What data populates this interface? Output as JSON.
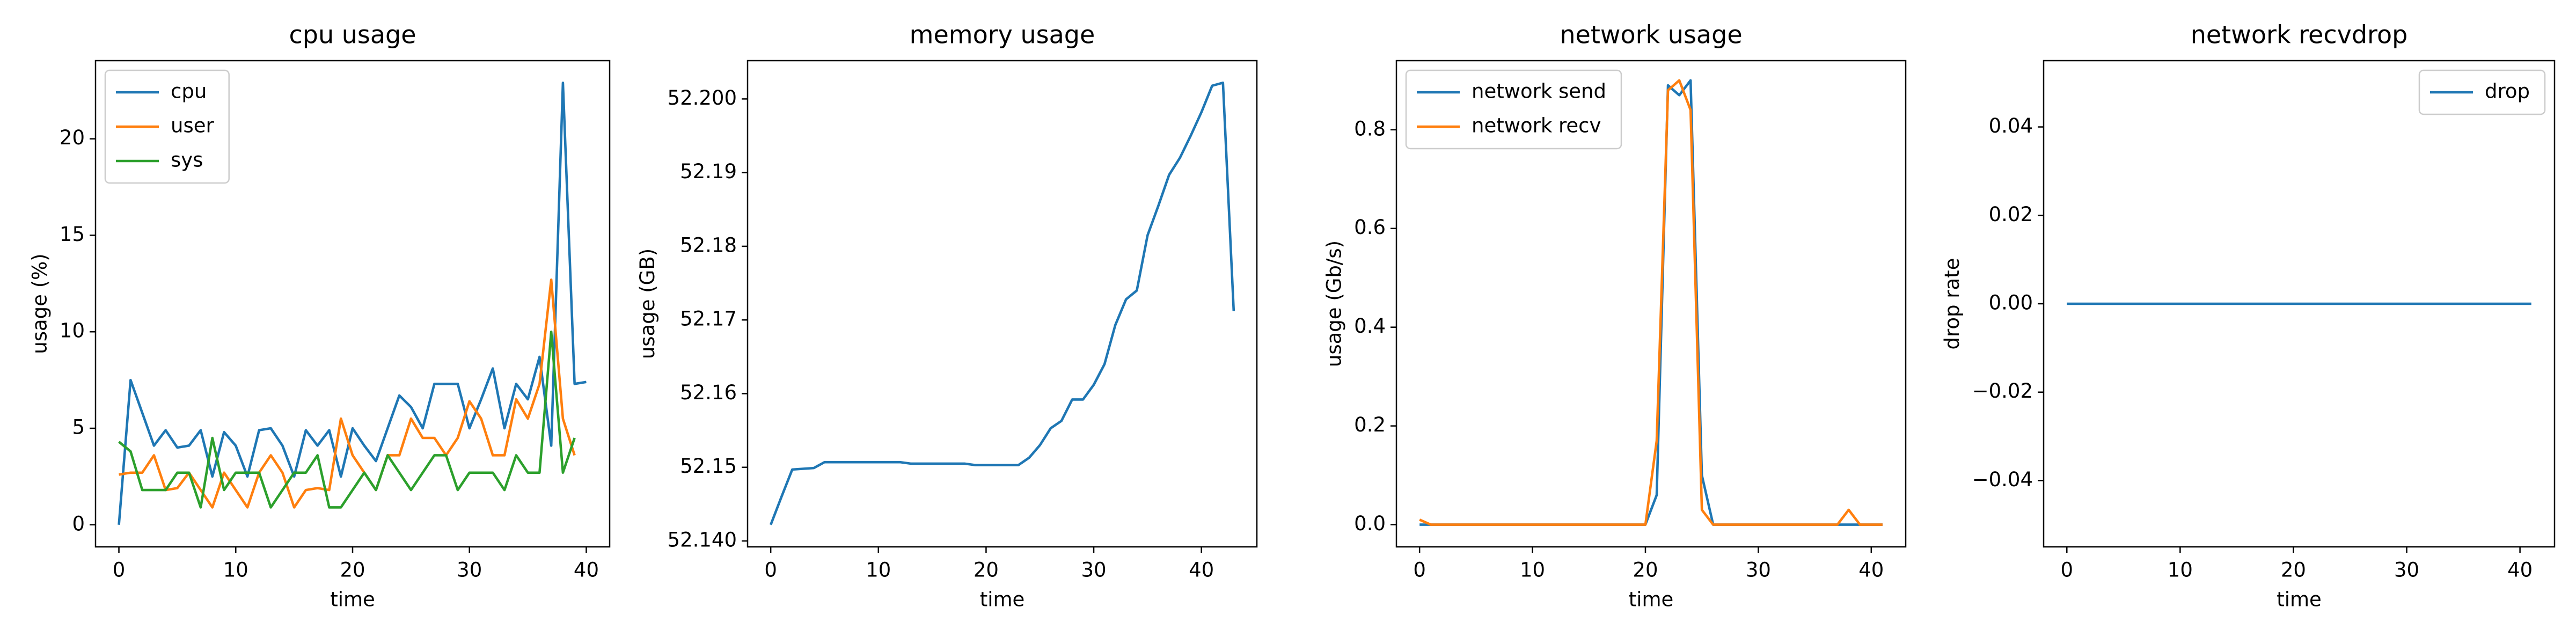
{
  "chart_data": [
    {
      "type": "line",
      "title": "cpu usage",
      "xlabel": "time",
      "ylabel": "usage (%)",
      "x": [
        0,
        1,
        2,
        3,
        4,
        5,
        6,
        7,
        8,
        9,
        10,
        11,
        12,
        13,
        14,
        15,
        16,
        17,
        18,
        19,
        20,
        21,
        22,
        23,
        24,
        25,
        26,
        27,
        28,
        29,
        30,
        31,
        32,
        33,
        34,
        35,
        36,
        37,
        38,
        39,
        40
      ],
      "series": [
        {
          "name": "cpu",
          "color": "#1f77b4",
          "values": [
            0,
            7.5,
            5.8,
            4.1,
            4.9,
            4.0,
            4.1,
            4.9,
            2.5,
            4.8,
            4.1,
            2.5,
            4.9,
            5.0,
            4.1,
            2.5,
            4.9,
            4.1,
            4.9,
            2.5,
            5.0,
            4.1,
            3.3,
            5.0,
            6.7,
            6.1,
            5.0,
            7.3,
            7.3,
            7.3,
            5.0,
            6.5,
            8.1,
            5.0,
            7.3,
            6.5,
            8.7,
            4.1,
            22.9,
            7.3,
            7.4
          ]
        },
        {
          "name": "user",
          "color": "#ff7f0e",
          "values": [
            2.6,
            2.7,
            2.7,
            3.6,
            1.8,
            1.9,
            2.7,
            1.8,
            0.9,
            2.7,
            1.8,
            0.9,
            2.7,
            3.6,
            2.7,
            0.9,
            1.8,
            1.9,
            1.8,
            5.5,
            3.6,
            2.7,
            1.8,
            3.6,
            3.6,
            5.5,
            4.5,
            4.5,
            3.6,
            4.5,
            6.4,
            5.5,
            3.6,
            3.6,
            6.5,
            5.5,
            7.3,
            12.7,
            5.5,
            3.6,
            null
          ]
        },
        {
          "name": "sys",
          "color": "#2ca02c",
          "values": [
            4.3,
            3.8,
            1.8,
            1.8,
            1.8,
            2.7,
            2.7,
            0.9,
            4.5,
            1.8,
            2.7,
            2.7,
            2.7,
            0.9,
            1.8,
            2.7,
            2.7,
            3.6,
            0.9,
            0.9,
            1.8,
            2.7,
            1.8,
            3.6,
            2.7,
            1.8,
            2.7,
            3.6,
            3.6,
            1.8,
            2.7,
            2.7,
            2.7,
            1.8,
            3.6,
            2.7,
            2.7,
            10.0,
            2.7,
            4.5,
            null
          ]
        }
      ],
      "xlim": [
        -2,
        42
      ],
      "ylim": [
        -1.145,
        24.05
      ],
      "xticks": [
        0,
        10,
        20,
        30,
        40
      ],
      "yticks": [
        0,
        5,
        10,
        15,
        20
      ],
      "legend": "upper left"
    },
    {
      "type": "line",
      "title": "memory usage",
      "xlabel": "time",
      "ylabel": "usage (GB)",
      "x": [
        0,
        1,
        2,
        3,
        4,
        5,
        6,
        7,
        8,
        9,
        10,
        11,
        12,
        13,
        14,
        15,
        16,
        17,
        18,
        19,
        20,
        21,
        22,
        23,
        24,
        25,
        26,
        27,
        28,
        29,
        30,
        31,
        32,
        33,
        34,
        35,
        36,
        37,
        38,
        39,
        40,
        41,
        42,
        43
      ],
      "series": [
        {
          "name": "memory",
          "color": "#1f77b4",
          "values": [
            52.1422,
            52.146,
            52.1497,
            52.1498,
            52.1499,
            52.1507,
            52.1507,
            52.1507,
            52.1507,
            52.1507,
            52.1507,
            52.1507,
            52.1507,
            52.1505,
            52.1505,
            52.1505,
            52.1505,
            52.1505,
            52.1505,
            52.1503,
            52.1503,
            52.1503,
            52.1503,
            52.1503,
            52.1513,
            52.153,
            52.1553,
            52.1563,
            52.1592,
            52.1592,
            52.1612,
            52.164,
            52.1693,
            52.1728,
            52.174,
            52.1815,
            52.1855,
            52.1897,
            52.192,
            52.195,
            52.1982,
            52.2018,
            52.2022,
            52.1712
          ]
        }
      ],
      "xlim": [
        -2.15,
        45.15
      ],
      "ylim": [
        52.1392,
        52.2052
      ],
      "xticks": [
        0,
        10,
        20,
        30,
        40
      ],
      "yticks": [
        {
          "value": 52.14,
          "label": "52.140"
        },
        52.15,
        52.16,
        52.17,
        52.18,
        52.19,
        {
          "value": 52.2,
          "label": "52.200"
        }
      ]
    },
    {
      "type": "line",
      "title": "network usage",
      "xlabel": "time",
      "ylabel": "usage (Gb/s)",
      "x": [
        0,
        1,
        2,
        3,
        4,
        5,
        6,
        7,
        8,
        9,
        10,
        11,
        12,
        13,
        14,
        15,
        16,
        17,
        18,
        19,
        20,
        21,
        22,
        23,
        24,
        25,
        26,
        27,
        28,
        29,
        30,
        31,
        32,
        33,
        34,
        35,
        36,
        37,
        38,
        39,
        40,
        41
      ],
      "series": [
        {
          "name": "network send",
          "color": "#1f77b4",
          "values": [
            0,
            0,
            0,
            0,
            0,
            0,
            0,
            0,
            0,
            0,
            0,
            0,
            0,
            0,
            0,
            0,
            0,
            0,
            0,
            0,
            0,
            0.06,
            0.89,
            0.87,
            0.9,
            0.1,
            0,
            0,
            0,
            0,
            0,
            0,
            0,
            0,
            0,
            0,
            0,
            0,
            0,
            0,
            0,
            0
          ]
        },
        {
          "name": "network recv",
          "color": "#ff7f0e",
          "values": [
            0.01,
            0,
            0,
            0,
            0,
            0,
            0,
            0,
            0,
            0,
            0,
            0,
            0,
            0,
            0,
            0,
            0,
            0,
            0,
            0,
            0,
            0.17,
            0.88,
            0.9,
            0.84,
            0.03,
            0,
            0,
            0,
            0,
            0,
            0,
            0,
            0,
            0,
            0,
            0,
            0,
            0.03,
            0,
            0,
            0
          ]
        }
      ],
      "xlim": [
        -2.05,
        43.05
      ],
      "ylim": [
        -0.045,
        0.94
      ],
      "xticks": [
        0,
        10,
        20,
        30,
        40
      ],
      "yticks": [
        {
          "value": 0,
          "label": "0.0"
        },
        0.2,
        0.4,
        0.6,
        0.8
      ],
      "legend": "upper left"
    },
    {
      "type": "line",
      "title": "network recvdrop",
      "xlabel": "time",
      "ylabel": "drop rate",
      "x": [
        0,
        1,
        2,
        3,
        4,
        5,
        6,
        7,
        8,
        9,
        10,
        11,
        12,
        13,
        14,
        15,
        16,
        17,
        18,
        19,
        20,
        21,
        22,
        23,
        24,
        25,
        26,
        27,
        28,
        29,
        30,
        31,
        32,
        33,
        34,
        35,
        36,
        37,
        38,
        39,
        40,
        41
      ],
      "series": [
        {
          "name": "drop",
          "color": "#1f77b4",
          "values": [
            0,
            0,
            0,
            0,
            0,
            0,
            0,
            0,
            0,
            0,
            0,
            0,
            0,
            0,
            0,
            0,
            0,
            0,
            0,
            0,
            0,
            0,
            0,
            0,
            0,
            0,
            0,
            0,
            0,
            0,
            0,
            0,
            0,
            0,
            0,
            0,
            0,
            0,
            0,
            0,
            0,
            0
          ]
        }
      ],
      "xlim": [
        -2.05,
        43.05
      ],
      "ylim": [
        -0.055,
        0.055
      ],
      "xticks": [
        0,
        10,
        20,
        30,
        40
      ],
      "yticks": [
        {
          "value": -0.04,
          "label": "−0.04"
        },
        {
          "value": -0.02,
          "label": "−0.02"
        },
        {
          "value": 0,
          "label": "0.00"
        },
        {
          "value": 0.02,
          "label": "0.02"
        },
        0.04
      ],
      "legend": "upper right"
    }
  ]
}
